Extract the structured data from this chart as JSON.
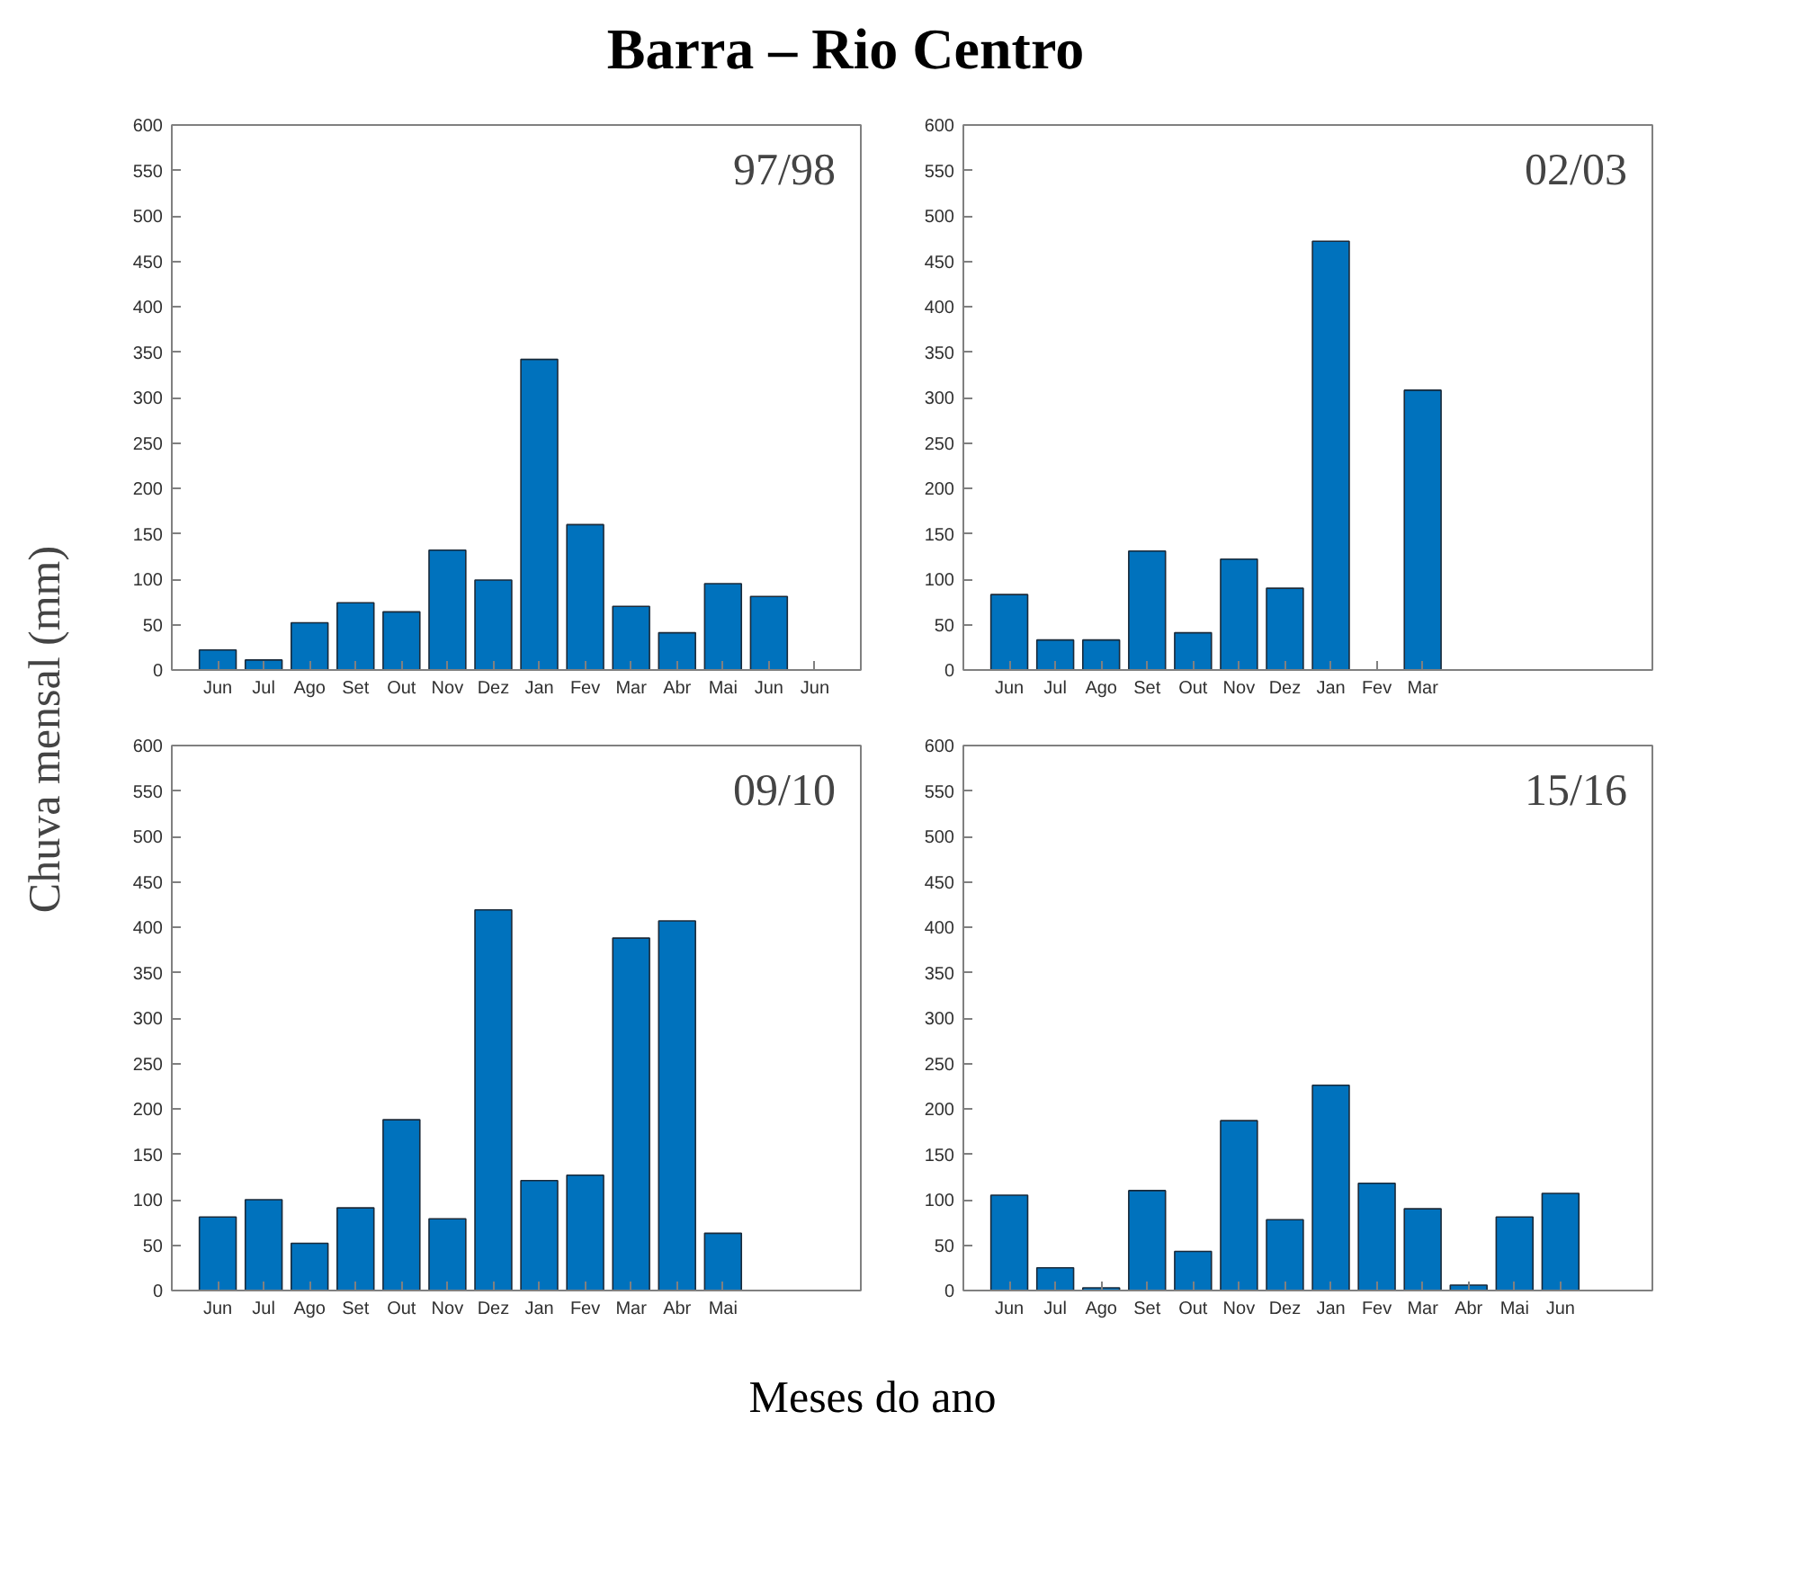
{
  "chart_data": [
    {
      "type": "bar",
      "title": "Barra – Rio Centro",
      "ylabel": "Chuva mensal (mm)",
      "annotations": [
        "97/98"
      ],
      "color": "#0072bd",
      "ylim": [
        0,
        600
      ],
      "yticks": [
        0,
        50,
        100,
        150,
        200,
        250,
        300,
        350,
        400,
        450,
        500,
        550,
        600
      ],
      "grid": false,
      "tick_labels": "xy",
      "categories": [
        "Jun",
        "Jul",
        "Ago",
        "Set",
        "Out",
        "Nov",
        "Dez",
        "Jan",
        "Fev",
        "Mar",
        "Abr",
        "Mai",
        "Jun",
        "Jun"
      ],
      "values": [
        22,
        11,
        52,
        74,
        64,
        132,
        99,
        342,
        160,
        70,
        41,
        95,
        81,
        null
      ]
    },
    {
      "type": "bar",
      "annotations": [
        "02/03"
      ],
      "color": "#0072bd",
      "ylim": [
        0,
        600
      ],
      "yticks": [
        0,
        50,
        100,
        150,
        200,
        250,
        300,
        350,
        400,
        450,
        500,
        550,
        600
      ],
      "grid": false,
      "categories": [
        "Jun",
        "Jul",
        "Ago",
        "Set",
        "Out",
        "Nov",
        "Dez",
        "Jan",
        "Fev",
        "Mar",
        null,
        null,
        null,
        null
      ],
      "values": [
        83,
        33,
        33,
        131,
        41,
        122,
        90,
        472,
        null,
        308,
        null,
        null,
        null,
        null
      ]
    },
    {
      "type": "bar",
      "annotations": [
        "09/10"
      ],
      "color": "#0072bd",
      "ylim": [
        0,
        600
      ],
      "yticks": [
        0,
        50,
        100,
        150,
        200,
        250,
        300,
        350,
        400,
        450,
        500,
        550,
        600
      ],
      "grid": false,
      "categories": [
        "Jun",
        "Jul",
        "Ago",
        "Set",
        "Out",
        "Nov",
        "Dez",
        "Jan",
        "Fev",
        "Mar",
        "Abr",
        "Mai",
        null,
        null
      ],
      "values": [
        81,
        100,
        52,
        91,
        188,
        79,
        419,
        121,
        127,
        388,
        407,
        63,
        null,
        null
      ]
    },
    {
      "type": "bar",
      "xlabel": "Meses do ano",
      "annotations": [
        "15/16"
      ],
      "color": "#0072bd",
      "ylim": [
        0,
        600
      ],
      "yticks": [
        0,
        50,
        100,
        150,
        200,
        250,
        300,
        350,
        400,
        450,
        500,
        550,
        600
      ],
      "grid": false,
      "categories": [
        "Jun",
        "Jul",
        "Ago",
        "Set",
        "Out",
        "Nov",
        "Dez",
        "Jan",
        "Fev",
        "Mar",
        "Abr",
        "Mai",
        "Jun",
        null
      ],
      "values": [
        105,
        25,
        3,
        110,
        43,
        187,
        78,
        226,
        118,
        90,
        6,
        81,
        107,
        null
      ]
    }
  ]
}
